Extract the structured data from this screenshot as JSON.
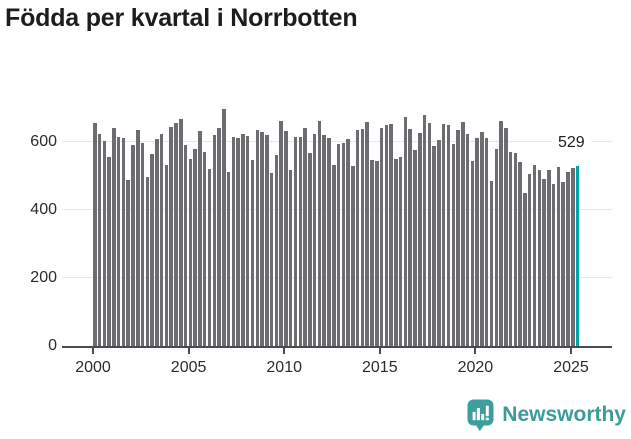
{
  "title": "Födda per kvartal i Norrbotten",
  "logo": {
    "text": "Newsworthy"
  },
  "chart_data": {
    "type": "bar",
    "title": "Födda per kvartal i Norrbotten",
    "xlabel": "",
    "ylabel": "",
    "unit": "födda per kvartal",
    "x_period": "quarterly",
    "x_range": [
      "2000 Q1",
      "2025 Q2"
    ],
    "ylim": [
      0,
      700
    ],
    "y_ticks": [
      0,
      200,
      400,
      600
    ],
    "x_ticks": [
      2000,
      2005,
      2010,
      2015,
      2020,
      2025
    ],
    "grid": "horizontal",
    "legend": "none",
    "values_by_year": {
      "2000": [
        655,
        625,
        603,
        556
      ],
      "2001": [
        641,
        615,
        612,
        489
      ],
      "2002": [
        591,
        634,
        598,
        497
      ],
      "2003": [
        566,
        610,
        624,
        531
      ],
      "2004": [
        645,
        655,
        668,
        590
      ],
      "2005": [
        549,
        578,
        632,
        571
      ],
      "2006": [
        522,
        622,
        641,
        698
      ],
      "2007": [
        512,
        615,
        612,
        625
      ],
      "2008": [
        618,
        547,
        635,
        630
      ],
      "2009": [
        620,
        510,
        561,
        661
      ],
      "2010": [
        631,
        518,
        614,
        615
      ],
      "2011": [
        641,
        567,
        623,
        661
      ],
      "2012": [
        620,
        611,
        533,
        593
      ],
      "2013": [
        597,
        609,
        528,
        634
      ],
      "2014": [
        639,
        659,
        548,
        545
      ],
      "2015": [
        641,
        649,
        654,
        550
      ],
      "2016": [
        555,
        674,
        638,
        576
      ],
      "2017": [
        627,
        680,
        657,
        589
      ],
      "2018": [
        607,
        654,
        649,
        594
      ],
      "2019": [
        635,
        660,
        625,
        545
      ],
      "2020": [
        611,
        628,
        611,
        486
      ],
      "2021": [
        580,
        663,
        640,
        571
      ],
      "2022": [
        568,
        542,
        450,
        507
      ],
      "2023": [
        532,
        517,
        492,
        519
      ],
      "2024": [
        477,
        527,
        482,
        513
      ],
      "2025": [
        524,
        529
      ]
    },
    "highlight_last": true,
    "annotation": {
      "text": "529",
      "value": 529,
      "target": "2025 Q2"
    },
    "colors": {
      "bar": "#6c6c71",
      "highlight": "#00a5a5",
      "grid": "#e7e7e7",
      "axis": "#4b4b4b",
      "text": "#2b2b2b",
      "title": "#1d1d1d",
      "logo": "#3e9e9c"
    }
  }
}
